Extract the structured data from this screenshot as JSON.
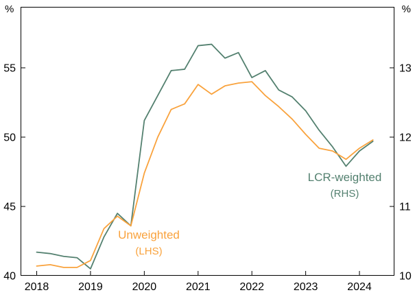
{
  "chart": {
    "left_unit": "%",
    "right_unit": "%",
    "annotations": {
      "lcr": {
        "line1": "LCR-weighted",
        "line2": "(RHS)"
      },
      "unweighted": {
        "line1": "Unweighted",
        "line2": "(LHS)"
      }
    }
  },
  "chart_data": {
    "type": "line",
    "x_unit": "quarterly_decimal_year",
    "x": [
      2018.0,
      2018.25,
      2018.5,
      2018.75,
      2019.0,
      2019.25,
      2019.5,
      2019.75,
      2020.0,
      2020.25,
      2020.5,
      2020.75,
      2021.0,
      2021.25,
      2021.5,
      2021.75,
      2022.0,
      2022.25,
      2022.5,
      2022.75,
      2023.0,
      2023.25,
      2023.5,
      2023.75,
      2024.0,
      2024.25
    ],
    "series": [
      {
        "name": "LCR-weighted",
        "axis": "right",
        "color": "#53806f",
        "values": [
          10.34,
          10.32,
          10.28,
          10.26,
          10.1,
          10.56,
          10.9,
          10.72,
          12.24,
          12.6,
          12.96,
          12.98,
          13.32,
          13.34,
          13.14,
          13.22,
          12.86,
          12.96,
          12.68,
          12.58,
          12.38,
          12.1,
          11.86,
          11.58,
          11.8,
          11.94
        ]
      },
      {
        "name": "Unweighted",
        "axis": "left",
        "color": "#f9a23c",
        "values": [
          40.7,
          40.8,
          40.6,
          40.6,
          41.1,
          43.4,
          44.3,
          43.6,
          47.4,
          50.0,
          52.0,
          52.4,
          53.8,
          53.1,
          53.7,
          53.9,
          54.0,
          53.0,
          52.2,
          51.3,
          50.2,
          49.2,
          49.0,
          48.4,
          49.2,
          49.8
        ]
      }
    ],
    "x_ticks": [
      2018,
      2019,
      2020,
      2021,
      2022,
      2023,
      2024
    ],
    "x_range": [
      2017.7,
      2024.65
    ],
    "left_axis": {
      "label": "%",
      "ticks": [
        40,
        45,
        50,
        55
      ],
      "range": [
        40,
        59.4
      ]
    },
    "right_axis": {
      "label": "%",
      "ticks": [
        10,
        11,
        12,
        13
      ],
      "range": [
        10,
        13.88
      ]
    },
    "grid": false,
    "axis_color": "#000000"
  }
}
